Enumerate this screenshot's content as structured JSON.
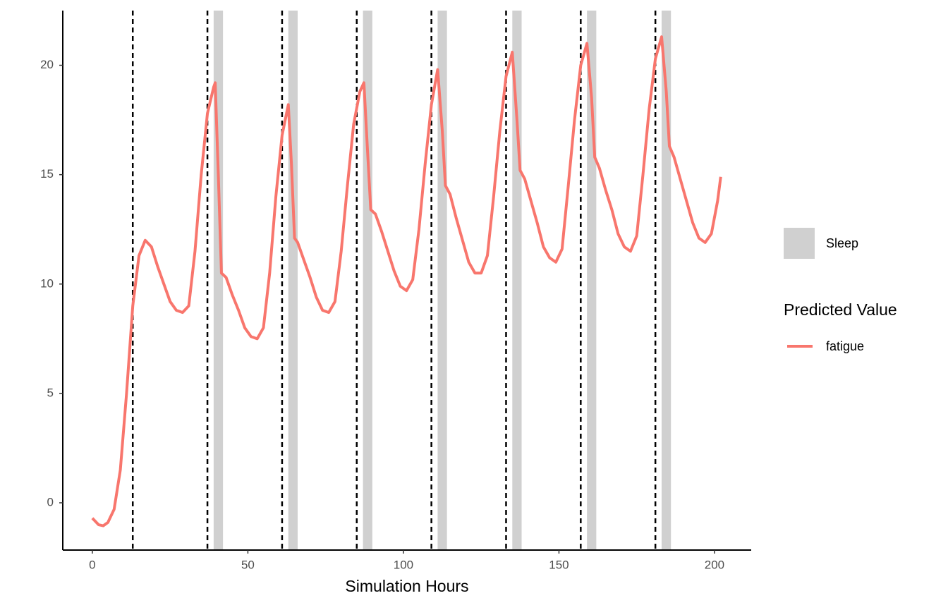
{
  "chart_data": {
    "type": "line",
    "x_label": "Simulation Hours",
    "legend_title": "Predicted Value",
    "x": [
      0,
      2,
      3.5,
      5,
      7,
      9,
      11,
      13,
      15,
      17,
      19,
      21,
      23,
      25,
      27,
      29,
      31,
      33,
      35,
      37,
      39,
      39.5,
      40.5,
      41.5,
      43,
      45,
      47,
      49,
      51,
      53,
      55,
      57,
      59,
      61,
      63,
      64,
      65,
      66,
      68,
      70,
      72,
      74,
      76,
      78,
      80,
      82,
      84,
      86,
      87.3,
      88.5,
      89.5,
      91,
      93,
      95,
      97,
      99,
      101,
      103,
      105,
      107,
      109,
      111,
      112.5,
      113.5,
      115,
      117,
      119,
      121,
      123,
      125,
      127,
      129,
      131,
      133,
      135,
      136.5,
      137.5,
      139,
      141,
      143,
      145,
      147,
      149,
      151,
      153,
      155,
      157,
      159,
      160.5,
      161.5,
      163,
      165,
      167,
      169,
      171,
      173,
      175,
      177,
      179,
      181,
      183,
      184.5,
      185.5,
      187,
      189,
      191,
      193,
      195,
      197,
      199,
      201,
      202
    ],
    "series": [
      {
        "name": "fatigue",
        "color": "#F8766D",
        "values": [
          -0.7,
          -1.0,
          -1.05,
          -0.9,
          -0.3,
          1.5,
          5,
          9,
          11.3,
          12.0,
          11.7,
          10.8,
          10,
          9.2,
          8.8,
          8.7,
          9.0,
          11.5,
          15,
          17.8,
          19.0,
          19.2,
          15,
          10.5,
          10.3,
          9.5,
          8.8,
          8.0,
          7.6,
          7.5,
          8,
          10.5,
          14,
          16.8,
          18.2,
          15.5,
          12.1,
          11.9,
          11.1,
          10.3,
          9.4,
          8.8,
          8.7,
          9.2,
          11.5,
          14.5,
          17.3,
          18.8,
          19.2,
          16,
          13.4,
          13.2,
          12.4,
          11.5,
          10.6,
          9.9,
          9.7,
          10.2,
          12.5,
          15.5,
          18.2,
          19.8,
          17,
          14.5,
          14.1,
          13.0,
          12.0,
          11.0,
          10.5,
          10.5,
          11.3,
          14,
          17,
          19.5,
          20.6,
          17.5,
          15.2,
          14.8,
          13.8,
          12.8,
          11.7,
          11.2,
          11.0,
          11.6,
          14.5,
          17.5,
          20,
          21.0,
          18.5,
          15.8,
          15.3,
          14.3,
          13.4,
          12.3,
          11.7,
          11.5,
          12.2,
          15,
          18,
          20.3,
          21.3,
          18.8,
          16.3,
          15.8,
          14.8,
          13.8,
          12.8,
          12.1,
          11.9,
          12.3,
          13.8,
          14.9
        ]
      }
    ],
    "sleep": {
      "name": "Sleep",
      "color": "#D0D0D0",
      "periods": [
        [
          39,
          42
        ],
        [
          63,
          66
        ],
        [
          87,
          90
        ],
        [
          111,
          114
        ],
        [
          135,
          138
        ],
        [
          159,
          162
        ],
        [
          183,
          186
        ]
      ]
    },
    "vlines": [
      13,
      37,
      61,
      85,
      109,
      133,
      157,
      181
    ],
    "xlim": [
      -9.5,
      211.8
    ],
    "ylim": [
      -2.16,
      22.5
    ],
    "xticks": [
      0,
      50,
      100,
      150,
      200
    ],
    "yticks": [
      0,
      5,
      10,
      15,
      20
    ],
    "grid": false
  }
}
